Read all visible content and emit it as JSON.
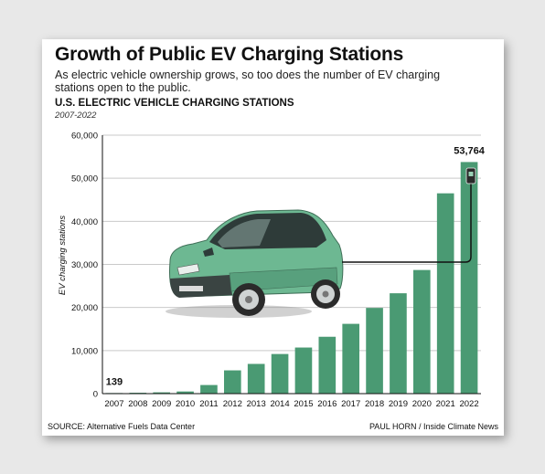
{
  "header": {
    "title": "Growth of Public EV Charging Stations",
    "subtitle": "As electric vehicle ownership grows, so too does the number of EV charging stations open to the public."
  },
  "chart_data": {
    "type": "bar",
    "title": "U.S. ELECTRIC VEHICLE CHARGING STATIONS",
    "subtitle": "2007-2022",
    "ylabel": "EV charging stations",
    "xlabel": "",
    "categories": [
      "2007",
      "2008",
      "2009",
      "2010",
      "2011",
      "2012",
      "2013",
      "2014",
      "2015",
      "2016",
      "2017",
      "2018",
      "2019",
      "2020",
      "2021",
      "2022"
    ],
    "values": [
      139,
      200,
      300,
      500,
      2000,
      5400,
      6900,
      9200,
      10700,
      13200,
      16200,
      19900,
      23300,
      28700,
      46500,
      53764
    ],
    "ylim": [
      0,
      60000
    ],
    "yticks": [
      0,
      10000,
      20000,
      30000,
      40000,
      50000,
      60000
    ],
    "ytick_labels": [
      "0",
      "10,000",
      "20,000",
      "30,000",
      "40,000",
      "50,000",
      "60,000"
    ],
    "data_labels": [
      {
        "index": 0,
        "text": "139"
      },
      {
        "index": 15,
        "text": "53,764"
      }
    ],
    "grid": true,
    "bar_color": "#4a9a73",
    "grid_color": "#c9c9c9"
  },
  "illustration": {
    "icon": "electric-car-icon",
    "body_color": "#6db892",
    "charger_icon": "charging-plug-icon"
  },
  "footer": {
    "source": "SOURCE: Alternative Fuels Data Center",
    "credit": "PAUL HORN / Inside Climate News"
  }
}
